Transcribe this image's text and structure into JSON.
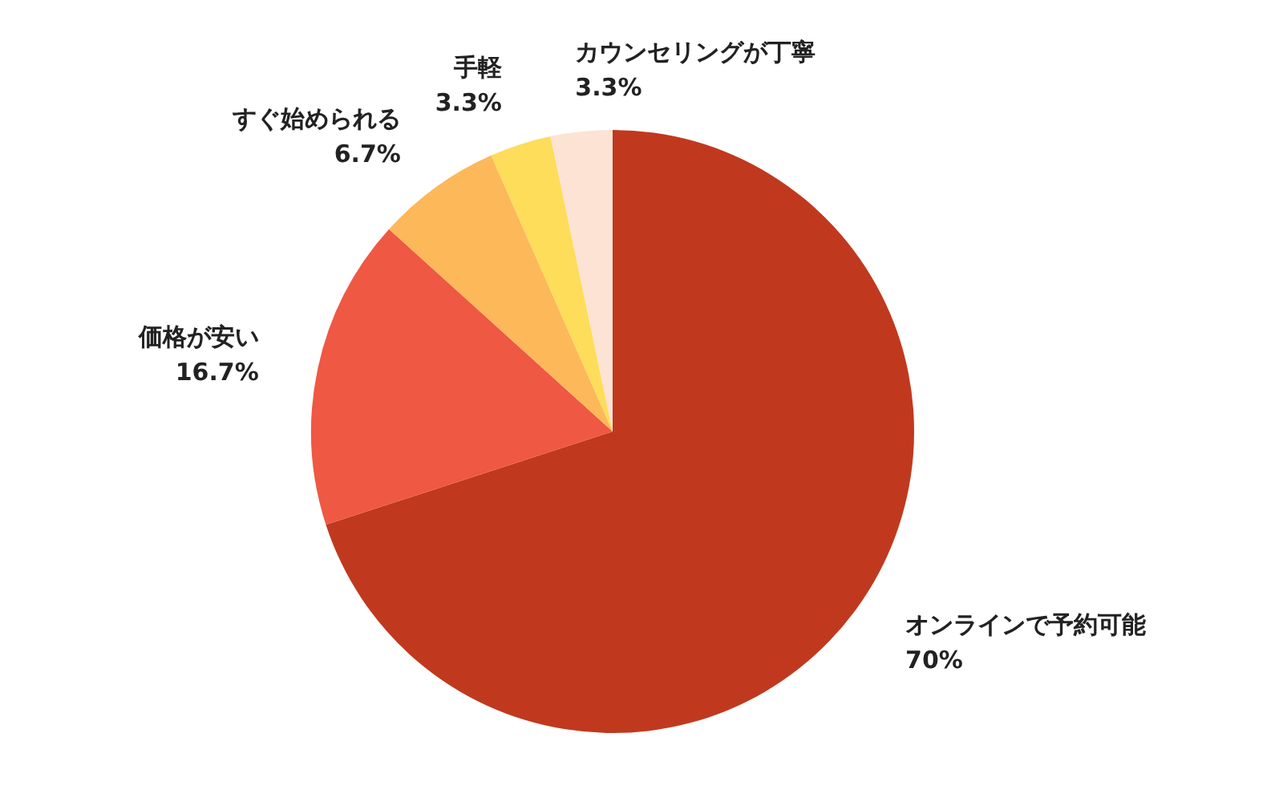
{
  "chart_data": {
    "type": "pie",
    "categories": [
      "オンラインで予約可能",
      "価格が安い",
      "すぐ始められる",
      "手軽",
      "カウンセリングが丁寧"
    ],
    "values": [
      70,
      16.7,
      6.7,
      3.3,
      3.3
    ],
    "colors": [
      "#c0391e",
      "#ef5843",
      "#fdb85a",
      "#fddd5a",
      "#fde3d4"
    ],
    "value_labels": [
      "70%",
      "16.7%",
      "6.7%",
      "3.3%",
      "3.3%"
    ],
    "legend": false
  }
}
